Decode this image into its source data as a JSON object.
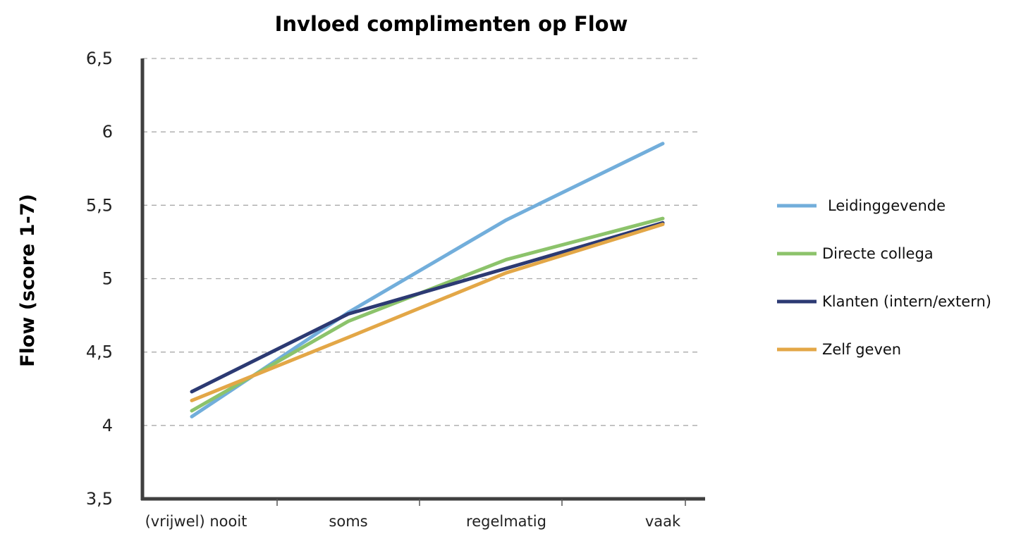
{
  "chart_data": {
    "type": "line",
    "title": "Invloed complimenten op Flow",
    "xlabel": "",
    "ylabel": "Flow (score 1-7)",
    "categories": [
      "(vrijwel) nooit",
      "soms",
      "regelmatig",
      "vaak"
    ],
    "ylim": [
      3.5,
      6.5
    ],
    "yticks": [
      {
        "value": 6.5,
        "label": "6,5"
      },
      {
        "value": 6.0,
        "label": "6"
      },
      {
        "value": 5.5,
        "label": "5,5"
      },
      {
        "value": 5.0,
        "label": "5"
      },
      {
        "value": 4.5,
        "label": "4,5"
      },
      {
        "value": 4.0,
        "label": "4"
      },
      {
        "value": 3.5,
        "label": "3,5"
      }
    ],
    "grid": true,
    "legend_position": "right",
    "series": [
      {
        "name": "Leidinggevende",
        "color": "#72aedb",
        "values": [
          4.06,
          4.77,
          5.4,
          5.92
        ]
      },
      {
        "name": "Directe collega",
        "color": "#8cc36b",
        "values": [
          4.1,
          4.71,
          5.13,
          5.41
        ]
      },
      {
        "name": "Klanten (intern/extern)",
        "color": "#2c3a73",
        "values": [
          4.23,
          4.76,
          5.07,
          5.38
        ]
      },
      {
        "name": "Zelf geven",
        "color": "#e3a747",
        "values": [
          4.17,
          4.6,
          5.04,
          5.37
        ]
      }
    ]
  }
}
